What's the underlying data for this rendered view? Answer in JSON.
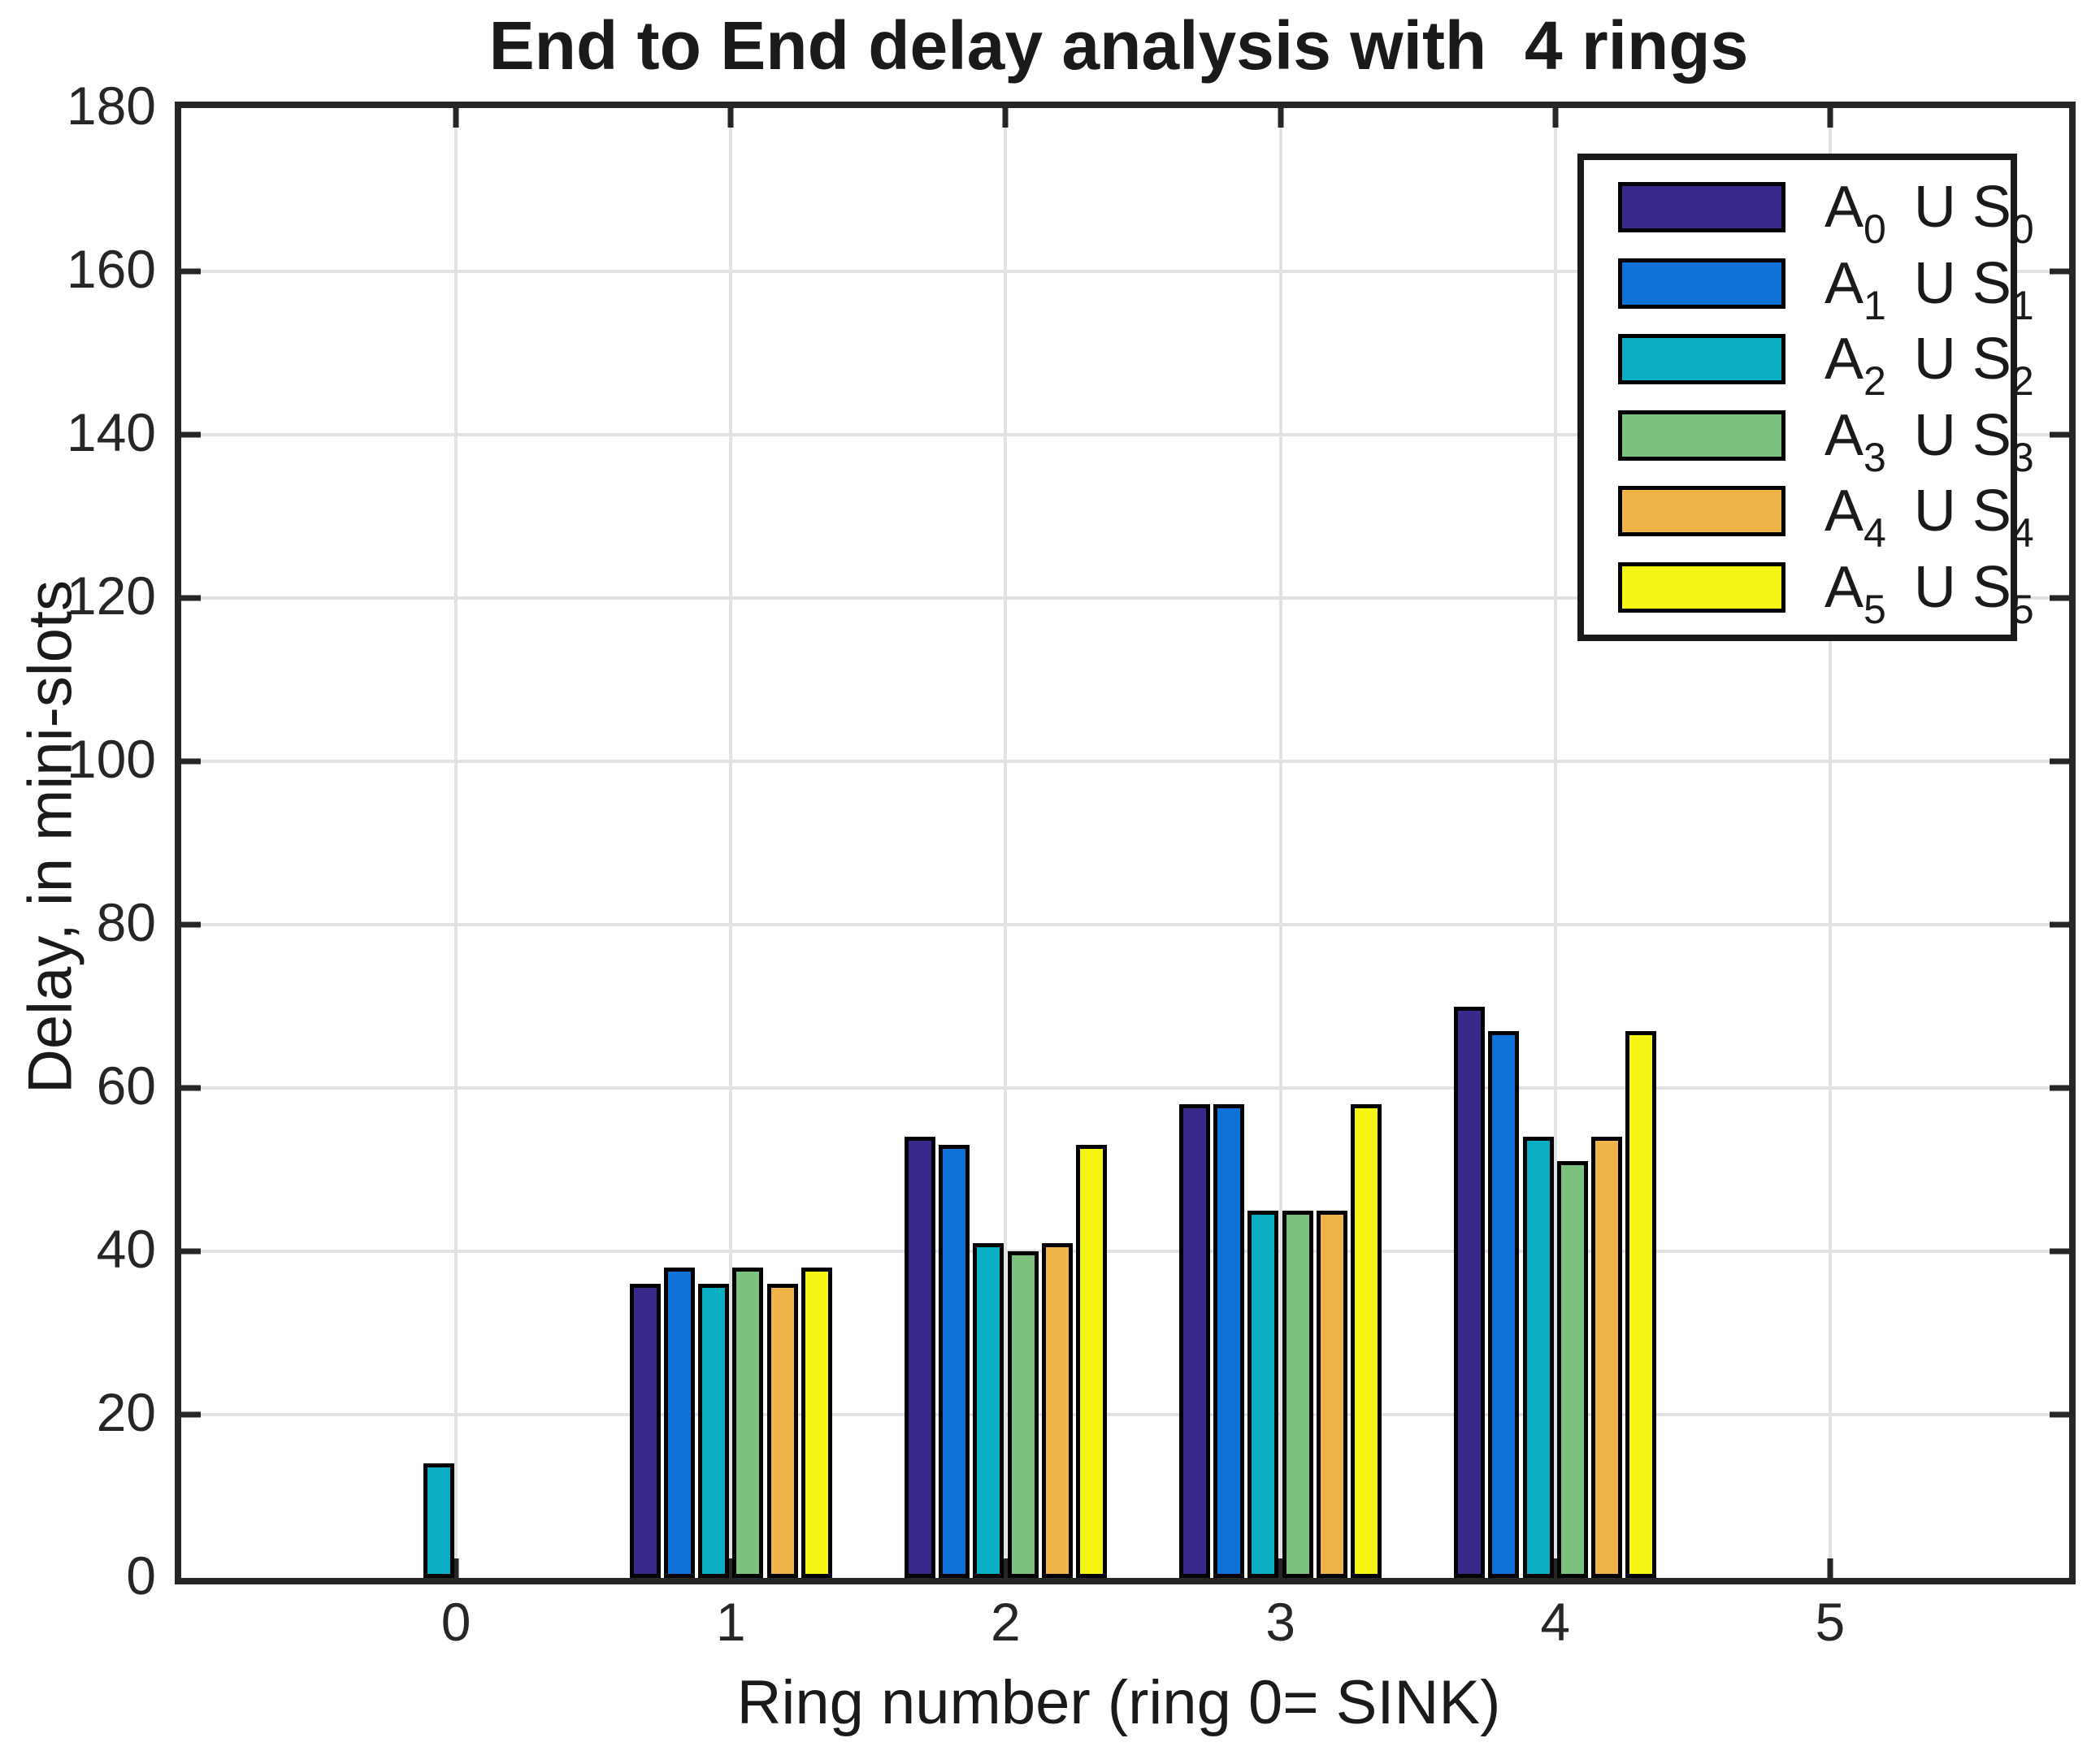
{
  "figure": {
    "title": "End to End delay analysis with  4 rings",
    "xlabel": "Ring number (ring 0= SINK)",
    "ylabel": "Delay, in mini-slots"
  },
  "axes": {
    "xticklabels": [
      "0",
      "1",
      "2",
      "3",
      "4",
      "5"
    ],
    "yticklabels": [
      "0",
      "20",
      "40",
      "60",
      "80",
      "100",
      "120",
      "140",
      "160",
      "180"
    ]
  },
  "colors": {
    "axis": "#262626",
    "grid": "#e2e2e2",
    "bar_edge": "#000000",
    "series": [
      "#37298C",
      "#0E72D8",
      "#09ADC4",
      "#7CC17D",
      "#F0B44A",
      "#F6F614"
    ]
  },
  "legend": {
    "items": [
      {
        "a": "A",
        "a_sub": "0",
        "mid": "U S",
        "s_sub": "0",
        "color": "#37298C"
      },
      {
        "a": "A",
        "a_sub": "1",
        "mid": "U S",
        "s_sub": "1",
        "color": "#0E72D8"
      },
      {
        "a": "A",
        "a_sub": "2",
        "mid": "U S",
        "s_sub": "2",
        "color": "#09ADC4"
      },
      {
        "a": "A",
        "a_sub": "3",
        "mid": "U S",
        "s_sub": "3",
        "color": "#7CC17D"
      },
      {
        "a": "A",
        "a_sub": "4",
        "mid": "U S",
        "s_sub": "4",
        "color": "#F0B44A"
      },
      {
        "a": "A",
        "a_sub": "5",
        "mid": "U S",
        "s_sub": "5",
        "color": "#F6F614"
      }
    ]
  },
  "chart_data": {
    "type": "bar",
    "title": "End to End delay analysis with  4 rings",
    "xlabel": "Ring number (ring 0= SINK)",
    "ylabel": "Delay, in mini-slots",
    "categories": [
      0,
      1,
      2,
      3,
      4,
      5
    ],
    "ylim": [
      0,
      180
    ],
    "ytick_step": 20,
    "grid": true,
    "legend_position": "upper right",
    "series": [
      {
        "name": "A0 U S0",
        "values": [
          0,
          36,
          54,
          58,
          70,
          0
        ]
      },
      {
        "name": "A1 U S1",
        "values": [
          0,
          38,
          53,
          58,
          67,
          0
        ]
      },
      {
        "name": "A2 U S2",
        "values": [
          14,
          36,
          41,
          45,
          54,
          0
        ]
      },
      {
        "name": "A3 U S3",
        "values": [
          0,
          38,
          40,
          45,
          51,
          0
        ]
      },
      {
        "name": "A4 U S4",
        "values": [
          0,
          36,
          41,
          45,
          54,
          0
        ]
      },
      {
        "name": "A5 U S5",
        "values": [
          0,
          38,
          53,
          58,
          67,
          0
        ]
      }
    ]
  }
}
